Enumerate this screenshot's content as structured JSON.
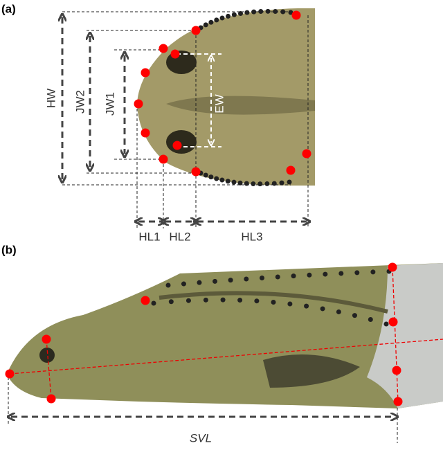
{
  "panels": [
    {
      "label": "(a)",
      "measures": [
        "HW",
        "JW2",
        "JW1",
        "EW",
        "HL1",
        "HL2",
        "HL3"
      ]
    },
    {
      "label": "(b)",
      "measures": [
        "SVL"
      ]
    }
  ]
}
